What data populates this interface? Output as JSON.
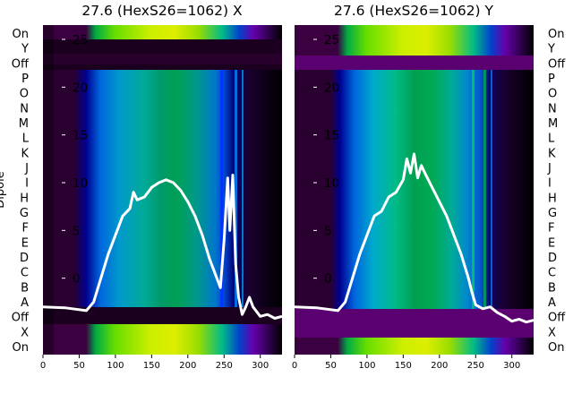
{
  "chart_data": [
    {
      "type": "heatmap",
      "title": "27.6 (HexS26=1062) X",
      "ylabel": "Dipole",
      "row_labels": [
        "On",
        "Y",
        "Off",
        "P",
        "O",
        "N",
        "M",
        "L",
        "K",
        "J",
        "I",
        "H",
        "G",
        "F",
        "E",
        "D",
        "C",
        "B",
        "A",
        "Off",
        "X",
        "On"
      ],
      "x_ticks": [
        0,
        50,
        100,
        150,
        200,
        250,
        300
      ],
      "xlim": [
        0,
        330
      ],
      "y_ticks": [
        0,
        5,
        10,
        15,
        20,
        25
      ],
      "ylim": [
        -8,
        26.5
      ],
      "colormap": "nipy_spectral",
      "overlay_series": {
        "color": "#ffffff",
        "x": [
          0,
          30,
          60,
          70,
          80,
          90,
          100,
          110,
          120,
          125,
          130,
          140,
          150,
          160,
          170,
          180,
          190,
          200,
          210,
          220,
          230,
          240,
          245,
          250,
          255,
          258,
          262,
          266,
          270,
          275,
          280,
          285,
          290,
          300,
          310,
          320,
          330
        ],
        "y": [
          -3,
          -3.1,
          -3.4,
          -2.5,
          0,
          2.5,
          4.5,
          6.5,
          7.3,
          9,
          8.2,
          8.5,
          9.5,
          10,
          10.3,
          10,
          9.2,
          8,
          6.5,
          4.5,
          2,
          0,
          -1,
          4,
          10.5,
          5,
          10.8,
          1.5,
          -2,
          -3.8,
          -3,
          -2,
          -3,
          -4,
          -3.8,
          -4.2,
          -4
        ]
      }
    },
    {
      "type": "heatmap",
      "title": "27.6 (HexS26=1062) Y",
      "row_labels": [
        "On",
        "Y",
        "Off",
        "P",
        "O",
        "N",
        "M",
        "L",
        "K",
        "J",
        "I",
        "H",
        "G",
        "F",
        "E",
        "D",
        "C",
        "B",
        "A",
        "Off",
        "X",
        "On"
      ],
      "x_ticks": [
        0,
        50,
        100,
        150,
        200,
        250,
        300
      ],
      "xlim": [
        0,
        330
      ],
      "y_ticks": [
        0,
        5,
        10,
        15,
        20,
        25
      ],
      "ylim": [
        -8,
        26.5
      ],
      "colormap": "nipy_spectral",
      "overlay_series": {
        "color": "#ffffff",
        "x": [
          0,
          30,
          60,
          70,
          80,
          90,
          100,
          110,
          120,
          130,
          140,
          150,
          155,
          160,
          165,
          170,
          175,
          180,
          190,
          200,
          210,
          220,
          230,
          240,
          245,
          250,
          260,
          270,
          280,
          290,
          300,
          310,
          320,
          330
        ],
        "y": [
          -3,
          -3.1,
          -3.4,
          -2.5,
          0,
          2.5,
          4.5,
          6.5,
          7,
          8.5,
          9,
          10.3,
          12.5,
          11,
          13,
          10.5,
          11.8,
          11,
          9.5,
          8,
          6.5,
          4.5,
          2.5,
          0,
          -1.5,
          -2.8,
          -3.2,
          -3,
          -3.6,
          -4,
          -4.5,
          -4.3,
          -4.6,
          -4.4
        ]
      }
    }
  ]
}
